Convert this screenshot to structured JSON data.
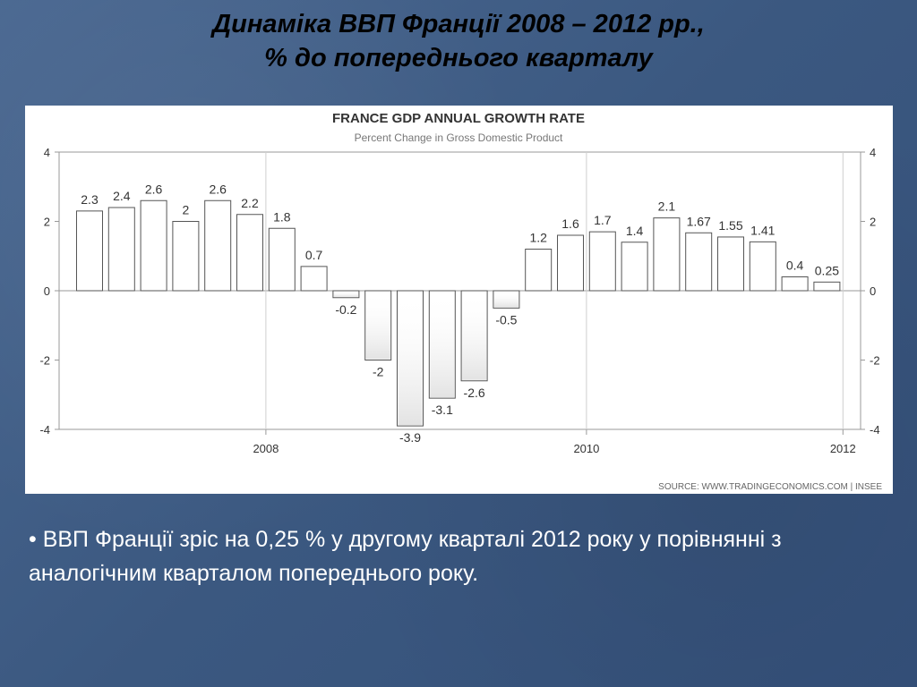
{
  "slide": {
    "title_line1": "Динаміка ВВП Франції 2008 – 2012 рр.,",
    "title_line2": "% до попереднього кварталу",
    "bullet": "• ВВП Франції зріс на 0,25 % у другому кварталі 2012 року у порівнянні з аналогічним кварталом попереднього року."
  },
  "chart_data": {
    "type": "bar",
    "title": "FRANCE GDP ANNUAL GROWTH RATE",
    "subtitle": "Percent Change in Gross Domestic Product",
    "source": "SOURCE: WWW.TRADINGECONOMICS.COM | INSEE",
    "ylim": [
      -4,
      4
    ],
    "yticks": [
      4,
      2,
      0,
      -2,
      -4
    ],
    "ytick_labels": [
      "4",
      "2",
      "0",
      "-2",
      "-4"
    ],
    "x_year_labels": [
      "2008",
      "2010",
      "2012"
    ],
    "values": [
      2.3,
      2.4,
      2.6,
      2,
      2.6,
      2.2,
      1.8,
      0.7,
      -0.2,
      -2,
      -3.9,
      -3.1,
      -2.6,
      -0.5,
      1.2,
      1.6,
      1.7,
      1.4,
      2.1,
      1.67,
      1.55,
      1.41,
      0.4,
      0.25
    ],
    "labels": [
      "2.3",
      "2.4",
      "2.6",
      "2",
      "2.6",
      "2.2",
      "1.8",
      "0.7",
      "-0.2",
      "-2",
      "-3.9",
      "-3.1",
      "-2.6",
      "-0.5",
      "1.2",
      "1.6",
      "1.7",
      "1.4",
      "2.1",
      "1.67",
      "1.55",
      "1.41",
      "0.4",
      "0.25"
    ],
    "grid": "vertical at year boundaries",
    "bar_color": "#ffffff",
    "bar_border": "#555555",
    "frame_color": "#999999",
    "text_color": "#333333"
  }
}
